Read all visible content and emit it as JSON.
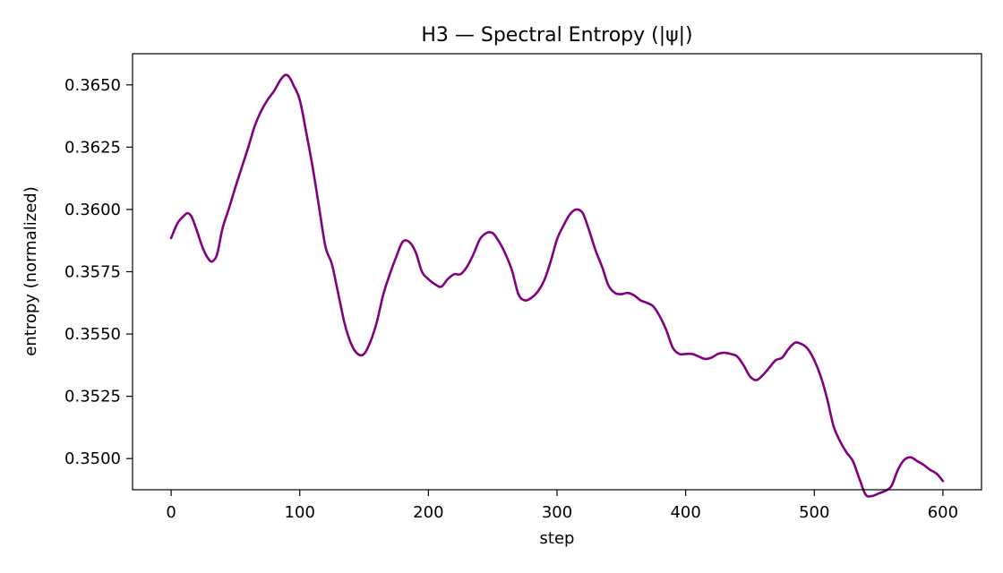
{
  "chart_data": {
    "type": "line",
    "title": "H3 — Spectral Entropy (|ψ|)",
    "xlabel": "step",
    "ylabel": "entropy (normalized)",
    "xlim": [
      -30,
      630
    ],
    "ylim": [
      0.34875,
      0.36625
    ],
    "xticks": [
      0,
      100,
      200,
      300,
      400,
      500,
      600
    ],
    "xtick_labels": [
      "0",
      "100",
      "200",
      "300",
      "400",
      "500",
      "600"
    ],
    "yticks": [
      0.35,
      0.3525,
      0.355,
      0.3575,
      0.36,
      0.3625,
      0.365
    ],
    "ytick_labels": [
      "0.3500",
      "0.3525",
      "0.3550",
      "0.3575",
      "0.3600",
      "0.3625",
      "0.3650"
    ],
    "grid": false,
    "series": [
      {
        "color": "#800080",
        "x": [
          0,
          5,
          10,
          13,
          16,
          20,
          25,
          30,
          33,
          36,
          40,
          45,
          50,
          55,
          60,
          65,
          70,
          75,
          80,
          85,
          89,
          92,
          95,
          100,
          105,
          110,
          115,
          120,
          125,
          130,
          135,
          140,
          145,
          150,
          155,
          160,
          165,
          170,
          175,
          180,
          185,
          190,
          195,
          200,
          205,
          210,
          215,
          220,
          225,
          230,
          235,
          240,
          245,
          250,
          255,
          260,
          265,
          270,
          275,
          280,
          285,
          290,
          295,
          300,
          305,
          310,
          315,
          320,
          325,
          330,
          335,
          340,
          345,
          350,
          355,
          360,
          365,
          370,
          375,
          380,
          385,
          390,
          395,
          400,
          405,
          410,
          415,
          420,
          425,
          430,
          435,
          440,
          445,
          450,
          455,
          460,
          465,
          470,
          475,
          480,
          485,
          490,
          495,
          500,
          505,
          510,
          515,
          520,
          525,
          530,
          535,
          540,
          545,
          550,
          555,
          560,
          565,
          570,
          575,
          580,
          585,
          590,
          595,
          600
        ],
        "y": [
          0.35885,
          0.35945,
          0.35975,
          0.35985,
          0.3597,
          0.35915,
          0.3584,
          0.35795,
          0.35795,
          0.35825,
          0.35925,
          0.36005,
          0.3609,
          0.3617,
          0.3625,
          0.36335,
          0.36395,
          0.3644,
          0.36475,
          0.3652,
          0.3654,
          0.3653,
          0.365,
          0.3644,
          0.3631,
          0.3617,
          0.3601,
          0.3585,
          0.3578,
          0.3566,
          0.3554,
          0.3546,
          0.3542,
          0.3542,
          0.3547,
          0.3555,
          0.3566,
          0.3574,
          0.3581,
          0.3587,
          0.3587,
          0.3583,
          0.3575,
          0.3572,
          0.357,
          0.3569,
          0.3572,
          0.3574,
          0.3574,
          0.3577,
          0.3582,
          0.3588,
          0.35905,
          0.35905,
          0.3587,
          0.3582,
          0.35755,
          0.3566,
          0.35635,
          0.35645,
          0.3567,
          0.35715,
          0.3579,
          0.3588,
          0.35935,
          0.3598,
          0.36,
          0.35985,
          0.35915,
          0.35835,
          0.3577,
          0.35695,
          0.35665,
          0.3566,
          0.35665,
          0.35655,
          0.35635,
          0.35625,
          0.3561,
          0.3557,
          0.35515,
          0.35445,
          0.3542,
          0.3542,
          0.3542,
          0.3541,
          0.354,
          0.35405,
          0.3542,
          0.35425,
          0.3542,
          0.3541,
          0.35375,
          0.3533,
          0.35315,
          0.35335,
          0.35365,
          0.35395,
          0.35405,
          0.3544,
          0.35465,
          0.3546,
          0.3544,
          0.35395,
          0.3533,
          0.3524,
          0.3513,
          0.3507,
          0.35025,
          0.3499,
          0.3492,
          0.34855,
          0.3485,
          0.3486,
          0.3487,
          0.3489,
          0.34955,
          0.34995,
          0.35005,
          0.3499,
          0.34975,
          0.34955,
          0.3494,
          0.3491
        ]
      }
    ]
  }
}
